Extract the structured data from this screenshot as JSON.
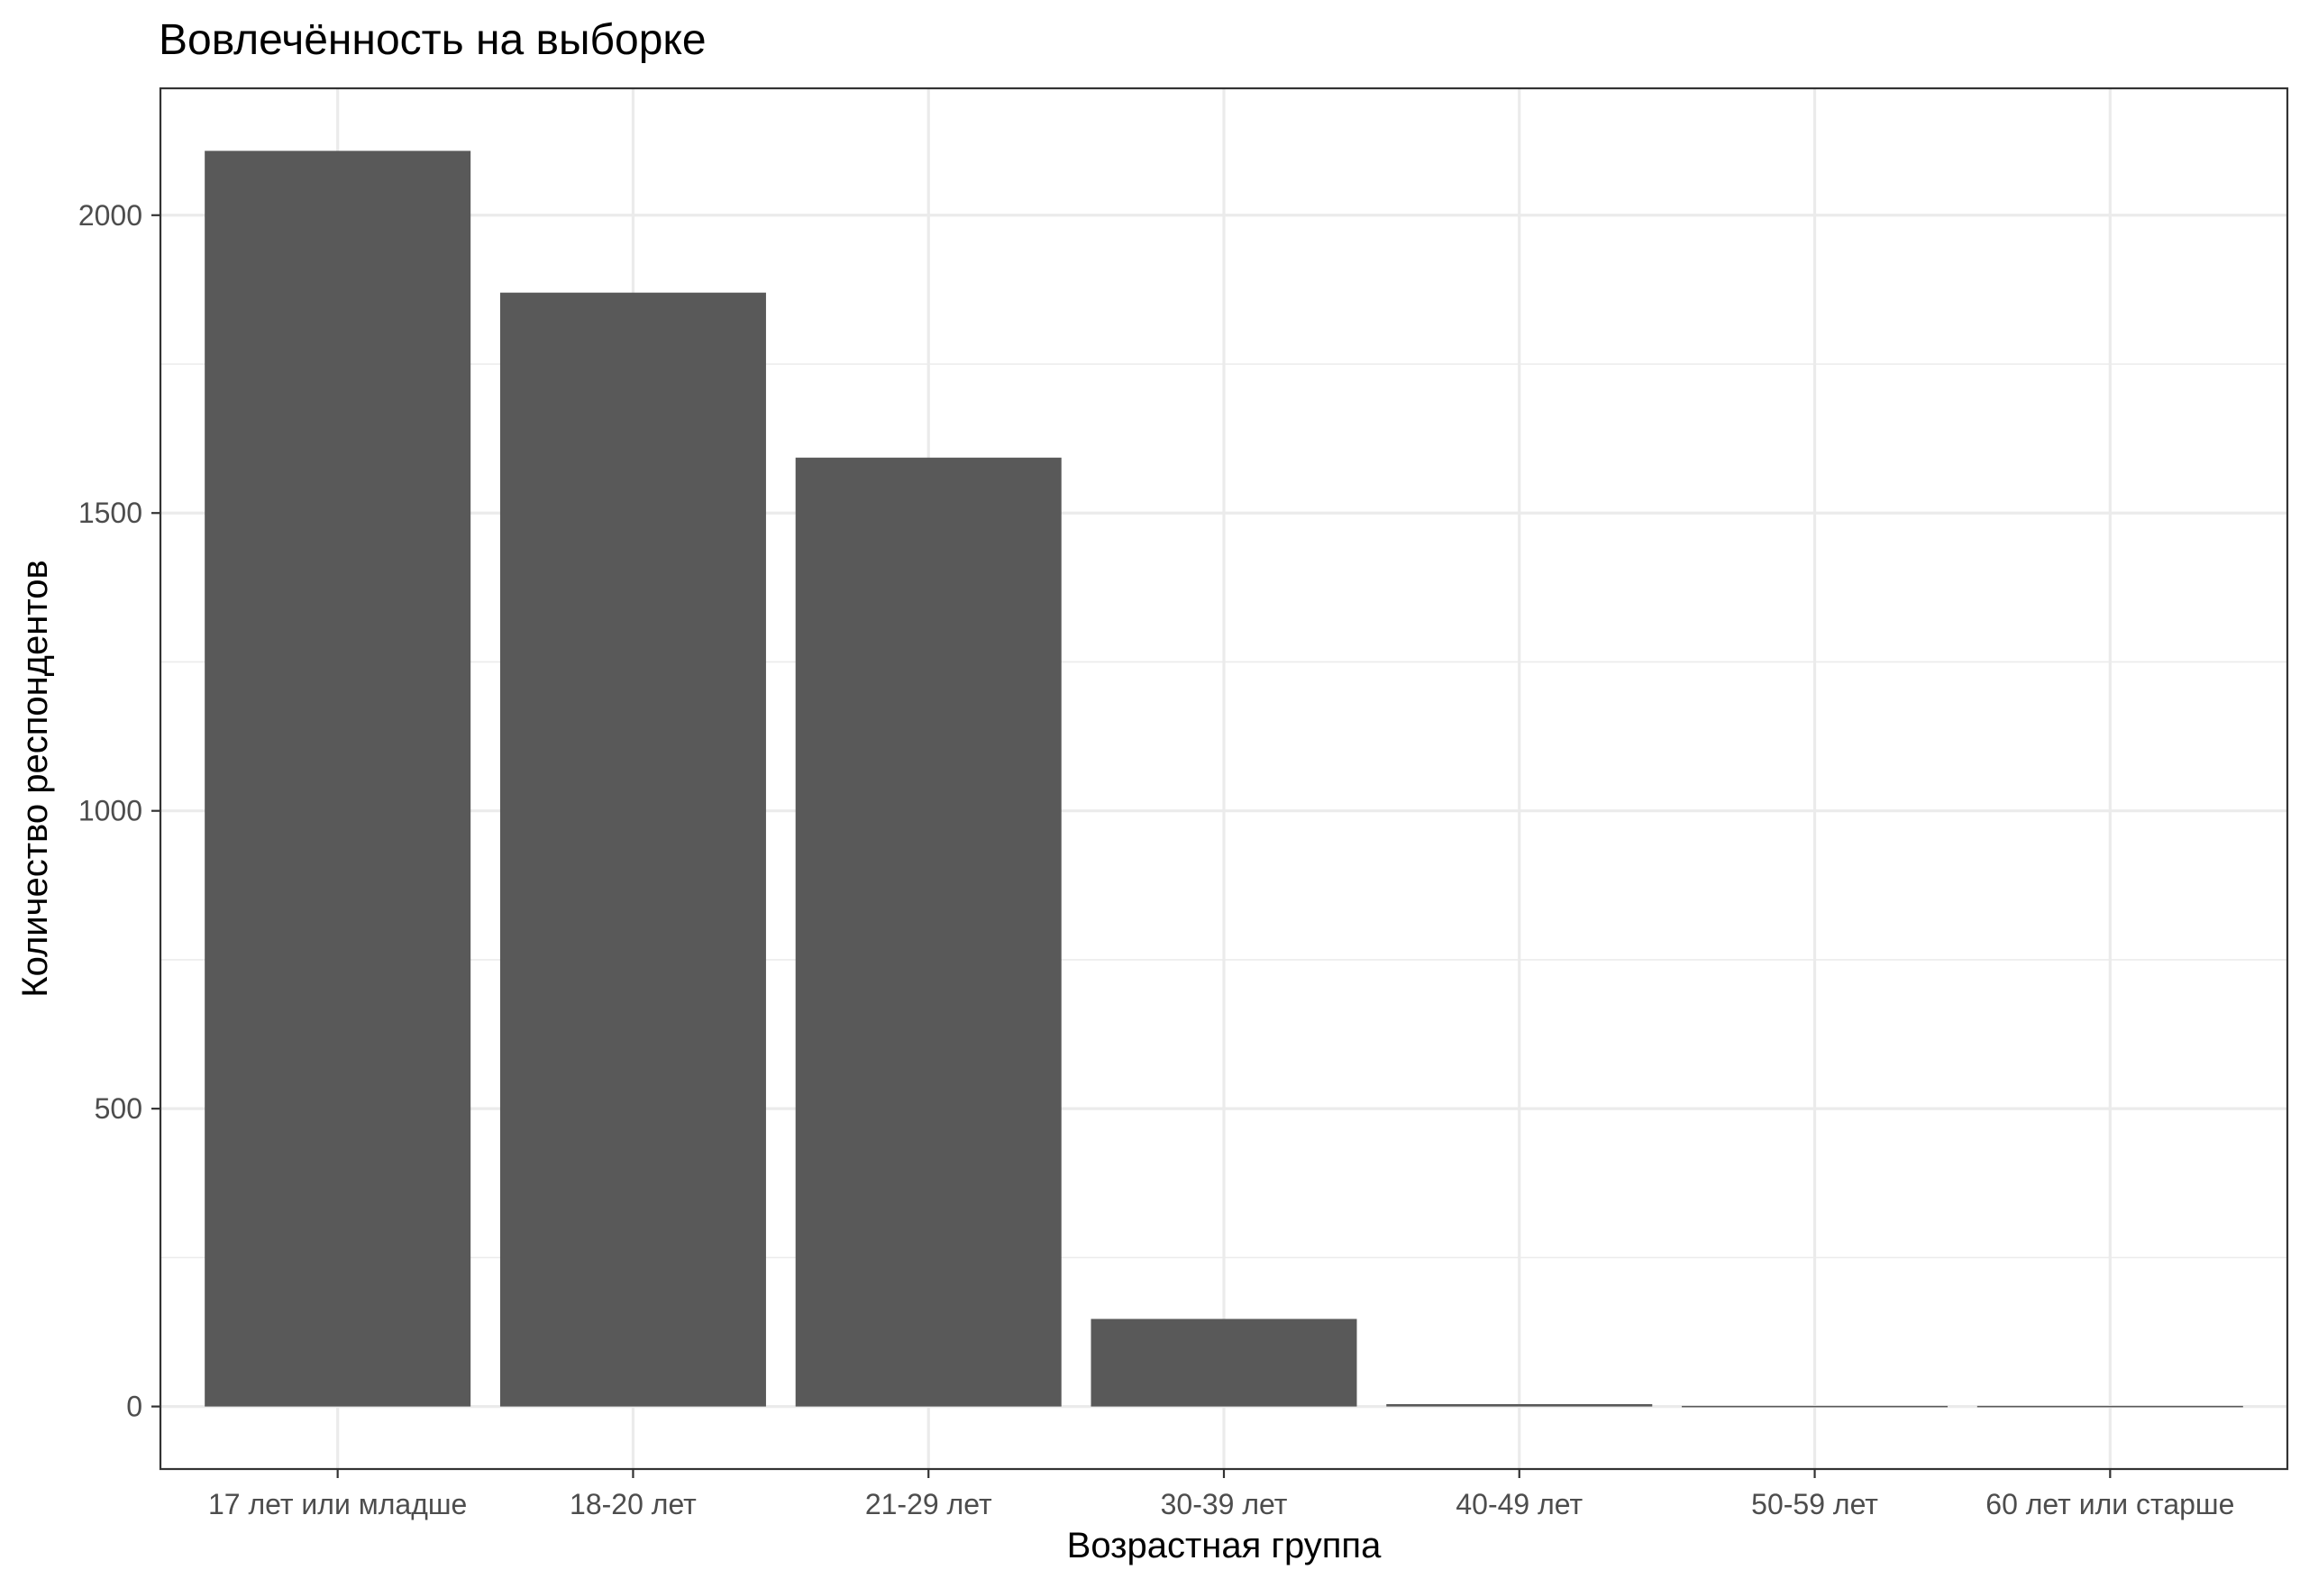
{
  "chart_data": {
    "type": "bar",
    "title": "Вовлечённость на выборке",
    "xlabel": "Возрастная группа",
    "ylabel": "Количество респондентов",
    "categories": [
      "17 лет или младше",
      "18-20 лет",
      "21-29 лет",
      "30-39 лет",
      "40-49 лет",
      "50-59 лет",
      "60 лет или старше"
    ],
    "values": [
      2108,
      1870,
      1593,
      147,
      4,
      1,
      1
    ],
    "ylim": [
      -105,
      2213
    ],
    "yticks": [
      0,
      500,
      1000,
      1500,
      2000
    ],
    "ytick_labels": [
      "0",
      "500",
      "1000",
      "1500",
      "2000"
    ],
    "y_minor_ticks": [
      250,
      750,
      1250,
      1750
    ],
    "bar_color": "#595959",
    "grid": true
  }
}
